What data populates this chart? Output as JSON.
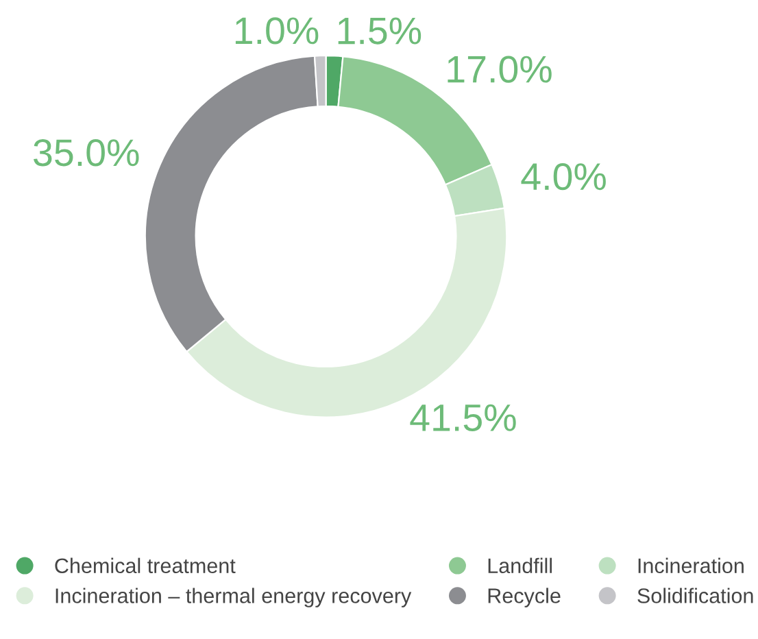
{
  "chart_data": {
    "type": "donut",
    "categories": [
      "Chemical treatment",
      "Landfill",
      "Incineration",
      "Incineration – thermal energy recovery",
      "Recycle",
      "Solidification"
    ],
    "values": [
      1.5,
      17.0,
      4.0,
      41.5,
      35.0,
      1.0
    ],
    "value_labels": [
      "1.5%",
      "17.0%",
      "4.0%",
      "41.5%",
      "35.0%",
      "1.0%"
    ],
    "colors": [
      "#4fa866",
      "#8ec993",
      "#bde0c0",
      "#dcedda",
      "#8c8d91",
      "#c4c4c8"
    ],
    "legend": "bottom"
  }
}
